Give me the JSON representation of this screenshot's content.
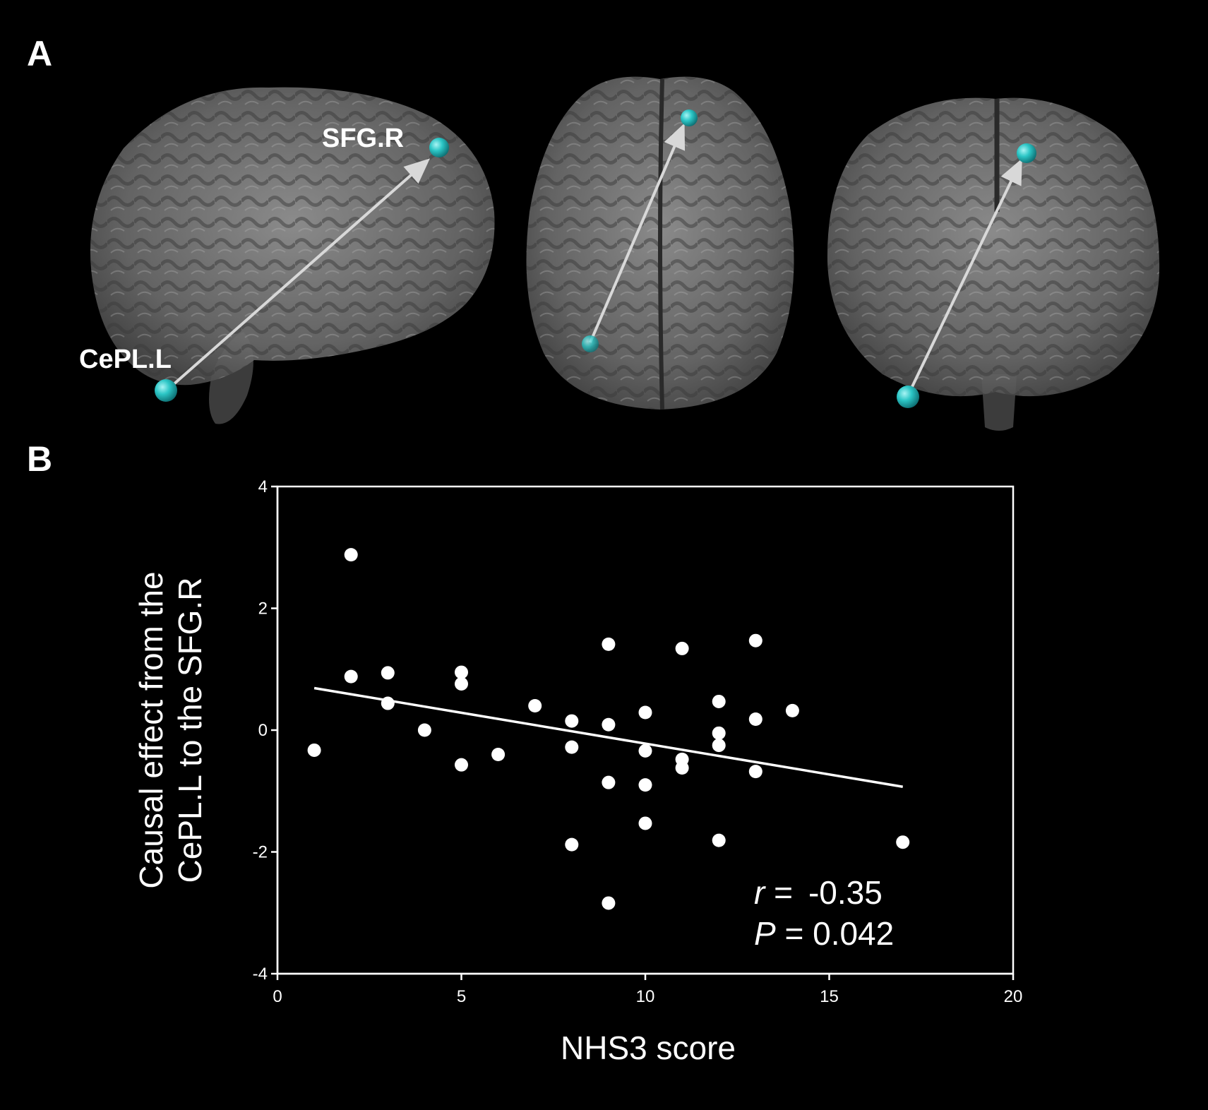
{
  "panels": {
    "a_label": "A",
    "b_label": "B"
  },
  "brain_views": {
    "sagittal": {
      "source_label": "CePL.L",
      "target_label": "SFG.R"
    }
  },
  "colors": {
    "background": "#000000",
    "foreground": "#ffffff",
    "node": "#2cc6c6",
    "brain": "#8a8a8a"
  },
  "chart_data": {
    "type": "scatter",
    "title": "",
    "xlabel": "NHS3 score",
    "ylabel_lines": [
      "Causal effect from the",
      "CePL.L to the SFG.R"
    ],
    "xlim": [
      0,
      20
    ],
    "ylim": [
      -4,
      4
    ],
    "xticks": [
      "0",
      "5",
      "10",
      "15",
      "20"
    ],
    "yticks": [
      "4",
      "2",
      "0",
      "-2",
      "-4"
    ],
    "grid": false,
    "points": [
      [
        1,
        -0.33
      ],
      [
        2,
        2.88
      ],
      [
        2,
        0.88
      ],
      [
        3,
        0.94
      ],
      [
        3,
        0.44
      ],
      [
        4,
        0.0
      ],
      [
        5,
        0.95
      ],
      [
        5,
        0.76
      ],
      [
        5,
        -0.57
      ],
      [
        6,
        -0.4
      ],
      [
        7,
        0.4
      ],
      [
        8,
        0.15
      ],
      [
        8,
        -0.28
      ],
      [
        8,
        -1.88
      ],
      [
        9,
        1.41
      ],
      [
        9,
        0.09
      ],
      [
        9,
        -0.86
      ],
      [
        9,
        -2.84
      ],
      [
        10,
        0.29
      ],
      [
        10,
        -0.34
      ],
      [
        10,
        -0.9
      ],
      [
        10,
        -1.53
      ],
      [
        11,
        1.34
      ],
      [
        11,
        -0.48
      ],
      [
        11,
        -0.62
      ],
      [
        12,
        0.47
      ],
      [
        12,
        -0.05
      ],
      [
        12,
        -0.25
      ],
      [
        12,
        -1.81
      ],
      [
        13,
        1.47
      ],
      [
        13,
        0.18
      ],
      [
        13,
        -0.68
      ],
      [
        14,
        0.32
      ],
      [
        17,
        -1.84
      ]
    ],
    "fit_line": {
      "x": [
        1,
        17
      ],
      "y": [
        0.69,
        -0.93
      ]
    },
    "annotation": {
      "r_symbol": "r",
      "r_text": " =  -0.35",
      "p_symbol": "P",
      "p_text": " = 0.042"
    }
  }
}
